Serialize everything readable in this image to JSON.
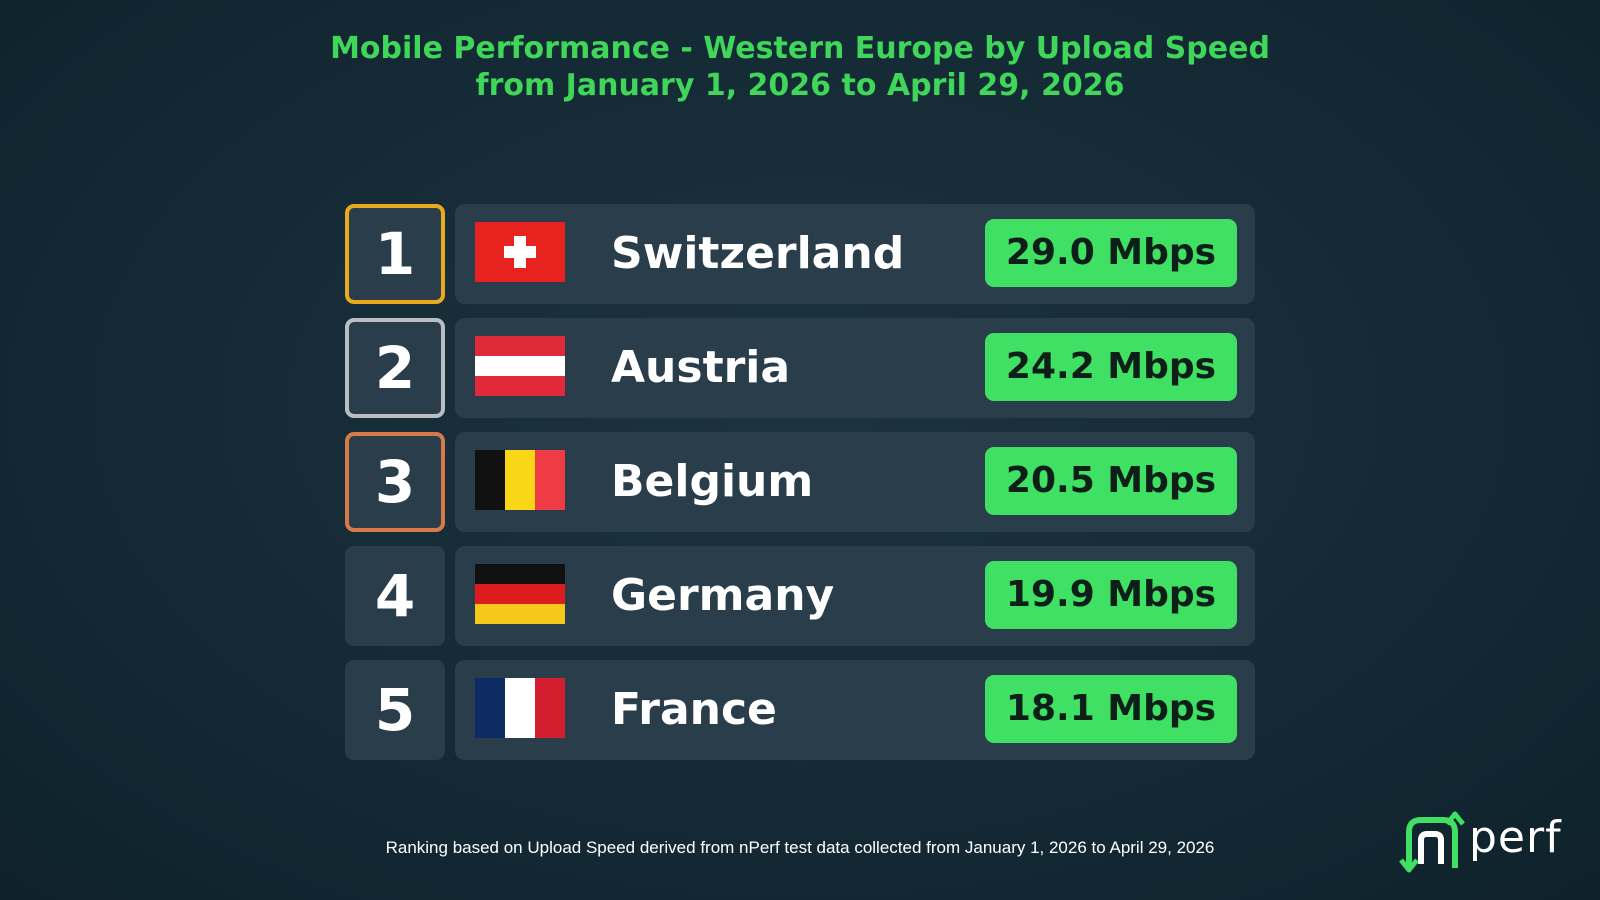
{
  "header": {
    "title_line1": "Mobile Performance - Western Europe by Upload Speed",
    "title_line2": "from January 1, 2026 to April 29, 2026"
  },
  "chart_data": {
    "type": "table",
    "metric": "Upload Speed",
    "unit": "Mbps",
    "rows": [
      {
        "rank": "1",
        "country": "Switzerland",
        "flag": "switzerland-flag",
        "speed": "29.0 Mbps",
        "value": 29.0,
        "rank_color": "#e9a91d"
      },
      {
        "rank": "2",
        "country": "Austria",
        "flag": "austria-flag",
        "speed": "24.2 Mbps",
        "value": 24.2,
        "rank_color": "#b9bec2"
      },
      {
        "rank": "3",
        "country": "Belgium",
        "flag": "belgium-flag",
        "speed": "20.5 Mbps",
        "value": 20.5,
        "rank_color": "#d8794a"
      },
      {
        "rank": "4",
        "country": "Germany",
        "flag": "germany-flag",
        "speed": "19.9 Mbps",
        "value": 19.9
      },
      {
        "rank": "5",
        "country": "France",
        "flag": "france-flag",
        "speed": "18.1 Mbps",
        "value": 18.1
      }
    ]
  },
  "footnote": "Ranking based on Upload Speed derived from nPerf test data collected from January 1, 2026 to April 29, 2026",
  "logo": {
    "text": "nperf",
    "color": "#3fe063"
  },
  "colors": {
    "accent": "#3fd65a",
    "card": "#2a3d4b",
    "background": "#142a35"
  }
}
